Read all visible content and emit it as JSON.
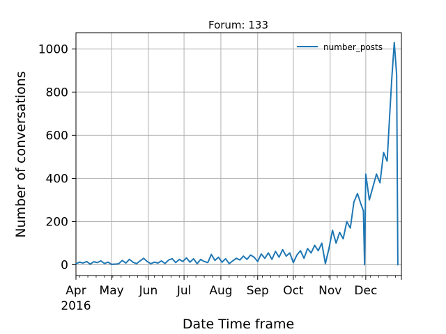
{
  "chart_data": {
    "type": "line",
    "title": "Forum: 133",
    "xlabel": "Date Time frame",
    "ylabel": "Number of conversations",
    "x_tick_labels": [
      "Apr\n2016",
      "May",
      "Jun",
      "Jul",
      "Aug",
      "Sep",
      "Oct",
      "Nov",
      "Dec"
    ],
    "x_tick_dates": [
      "2016-04-01",
      "2016-05-01",
      "2016-06-01",
      "2016-07-01",
      "2016-08-01",
      "2016-09-01",
      "2016-10-01",
      "2016-11-01",
      "2016-12-01"
    ],
    "xlim": [
      "2016-04-01",
      "2016-12-31"
    ],
    "y_ticks": [
      0,
      200,
      400,
      600,
      800,
      1000
    ],
    "ylim": [
      -50,
      1075
    ],
    "grid": true,
    "legend_position": "top-right",
    "series": [
      {
        "name": "number_posts",
        "color": "#1f77b4",
        "points": [
          [
            "2016-04-01",
            5
          ],
          [
            "2016-04-04",
            12
          ],
          [
            "2016-04-07",
            8
          ],
          [
            "2016-04-10",
            15
          ],
          [
            "2016-04-13",
            3
          ],
          [
            "2016-04-16",
            14
          ],
          [
            "2016-04-19",
            10
          ],
          [
            "2016-04-22",
            18
          ],
          [
            "2016-04-25",
            6
          ],
          [
            "2016-04-28",
            12
          ],
          [
            "2016-05-01",
            2
          ],
          [
            "2016-05-04",
            3
          ],
          [
            "2016-05-07",
            5
          ],
          [
            "2016-05-10",
            20
          ],
          [
            "2016-05-13",
            8
          ],
          [
            "2016-05-16",
            25
          ],
          [
            "2016-05-19",
            12
          ],
          [
            "2016-05-22",
            5
          ],
          [
            "2016-05-25",
            18
          ],
          [
            "2016-05-28",
            30
          ],
          [
            "2016-05-31",
            15
          ],
          [
            "2016-06-03",
            5
          ],
          [
            "2016-06-06",
            12
          ],
          [
            "2016-06-09",
            8
          ],
          [
            "2016-06-12",
            18
          ],
          [
            "2016-06-15",
            6
          ],
          [
            "2016-06-18",
            22
          ],
          [
            "2016-06-21",
            28
          ],
          [
            "2016-06-24",
            10
          ],
          [
            "2016-06-27",
            25
          ],
          [
            "2016-06-30",
            15
          ],
          [
            "2016-07-03",
            32
          ],
          [
            "2016-07-06",
            12
          ],
          [
            "2016-07-09",
            28
          ],
          [
            "2016-07-12",
            5
          ],
          [
            "2016-07-15",
            25
          ],
          [
            "2016-07-18",
            15
          ],
          [
            "2016-07-21",
            10
          ],
          [
            "2016-07-24",
            48
          ],
          [
            "2016-07-27",
            20
          ],
          [
            "2016-07-30",
            35
          ],
          [
            "2016-08-02",
            12
          ],
          [
            "2016-08-05",
            28
          ],
          [
            "2016-08-08",
            5
          ],
          [
            "2016-08-11",
            18
          ],
          [
            "2016-08-14",
            30
          ],
          [
            "2016-08-17",
            22
          ],
          [
            "2016-08-20",
            40
          ],
          [
            "2016-08-23",
            25
          ],
          [
            "2016-08-26",
            45
          ],
          [
            "2016-08-29",
            35
          ],
          [
            "2016-09-01",
            15
          ],
          [
            "2016-09-04",
            50
          ],
          [
            "2016-09-07",
            30
          ],
          [
            "2016-09-10",
            55
          ],
          [
            "2016-09-13",
            25
          ],
          [
            "2016-09-16",
            62
          ],
          [
            "2016-09-19",
            35
          ],
          [
            "2016-09-22",
            70
          ],
          [
            "2016-09-25",
            40
          ],
          [
            "2016-09-28",
            55
          ],
          [
            "2016-10-01",
            10
          ],
          [
            "2016-10-04",
            45
          ],
          [
            "2016-10-07",
            65
          ],
          [
            "2016-10-10",
            30
          ],
          [
            "2016-10-13",
            75
          ],
          [
            "2016-10-16",
            55
          ],
          [
            "2016-10-19",
            90
          ],
          [
            "2016-10-22",
            65
          ],
          [
            "2016-10-25",
            100
          ],
          [
            "2016-10-28",
            5
          ],
          [
            "2016-10-31",
            75
          ],
          [
            "2016-11-03",
            160
          ],
          [
            "2016-11-06",
            100
          ],
          [
            "2016-11-09",
            150
          ],
          [
            "2016-11-12",
            120
          ],
          [
            "2016-11-15",
            200
          ],
          [
            "2016-11-18",
            170
          ],
          [
            "2016-11-21",
            290
          ],
          [
            "2016-11-24",
            330
          ],
          [
            "2016-11-27",
            280
          ],
          [
            "2016-11-29",
            250
          ],
          [
            "2016-11-30",
            0
          ],
          [
            "2016-12-01",
            420
          ],
          [
            "2016-12-04",
            300
          ],
          [
            "2016-12-07",
            360
          ],
          [
            "2016-12-10",
            420
          ],
          [
            "2016-12-13",
            380
          ],
          [
            "2016-12-16",
            520
          ],
          [
            "2016-12-19",
            480
          ],
          [
            "2016-12-21",
            680
          ],
          [
            "2016-12-23",
            870
          ],
          [
            "2016-12-25",
            1030
          ],
          [
            "2016-12-27",
            880
          ],
          [
            "2016-12-28",
            0
          ]
        ]
      }
    ]
  }
}
